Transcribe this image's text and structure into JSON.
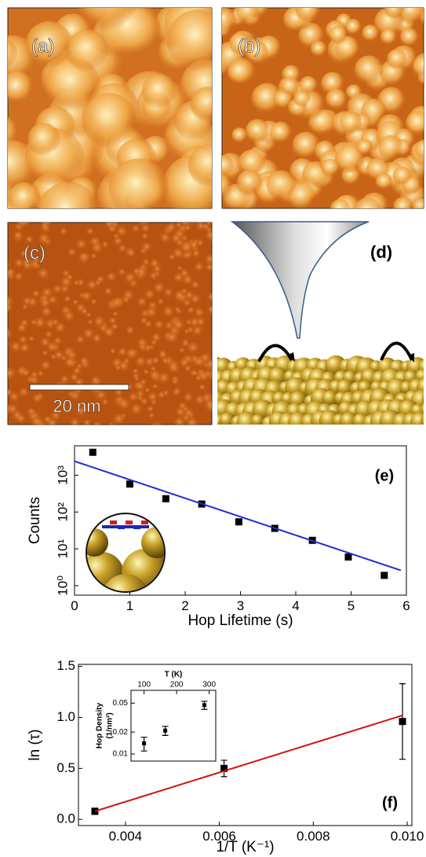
{
  "panels": [
    {
      "label": "(a)"
    },
    {
      "label": "(b)"
    },
    {
      "label": "(c)"
    },
    {
      "label": "(d)"
    }
  ],
  "scale_bar": "20 nm",
  "chart_data": [
    {
      "type": "scatter",
      "annotation": "(e)",
      "xlabel": "Hop Lifetime (s)",
      "ylabel": "Counts",
      "ylog": true,
      "xlim": [
        0,
        6
      ],
      "xticks": [
        0,
        1,
        2,
        3,
        4,
        5,
        6
      ],
      "ylim": [
        0.55,
        6300
      ],
      "yticks": [
        {
          "value": 1,
          "label": "10⁰"
        },
        {
          "value": 10,
          "label": "10¹"
        },
        {
          "value": 100,
          "label": "10²"
        },
        {
          "value": 1000,
          "label": "10³"
        }
      ],
      "series": [
        {
          "type": "scatter",
          "color": "#000000",
          "x": [
            0.33,
            1.0,
            1.65,
            2.3,
            2.97,
            3.62,
            4.3,
            4.95,
            5.6
          ],
          "values": [
            4200,
            575,
            230,
            165,
            54,
            36,
            17,
            6,
            1.9
          ]
        },
        {
          "type": "line",
          "color": "#1f2fd0",
          "x": [
            0,
            5.9
          ],
          "values": [
            2400,
            2.6
          ]
        }
      ]
    },
    {
      "type": "scatter",
      "annotation": "(f)",
      "xlabel": "1/T (K⁻¹)",
      "ylabel": "ln (τ)",
      "xlim": [
        0.003,
        0.0101
      ],
      "xticks": [
        0.004,
        0.006,
        0.008,
        {
          "value": 0.01,
          "label": "0.010"
        }
      ],
      "ylim": [
        -0.06,
        1.52
      ],
      "yticks": [
        {
          "value": 0,
          "label": "0.0"
        },
        0.5,
        {
          "value": 1,
          "label": "1.0"
        },
        1.5
      ],
      "series": [
        {
          "type": "scatter",
          "color": "#000000",
          "x": [
            0.00335,
            0.0061,
            0.0099
          ],
          "values": [
            0.08,
            0.5,
            0.96
          ],
          "errors": [
            0.03,
            0.08,
            0.37
          ]
        },
        {
          "type": "line",
          "color": "#d01010",
          "x": [
            0.00335,
            0.0099
          ],
          "values": [
            0.08,
            1.02
          ]
        }
      ]
    },
    {
      "type": "scatter",
      "xlabel": "T (K)",
      "ylabel": [
        "Hop Density",
        "(1/nm²)"
      ],
      "ylog": true,
      "xaxis": "top",
      "xlim": [
        60,
        320
      ],
      "xticks": [
        100,
        200,
        300
      ],
      "ylim": [
        0.008,
        0.075
      ],
      "yticks": [
        0.01,
        0.02,
        0.05
      ],
      "series": [
        {
          "type": "scatter",
          "color": "#000000",
          "x": [
            100,
            165,
            285
          ],
          "values": [
            0.014,
            0.021,
            0.047
          ],
          "errors": [
            0.003,
            0.003,
            0.006
          ]
        }
      ]
    }
  ]
}
